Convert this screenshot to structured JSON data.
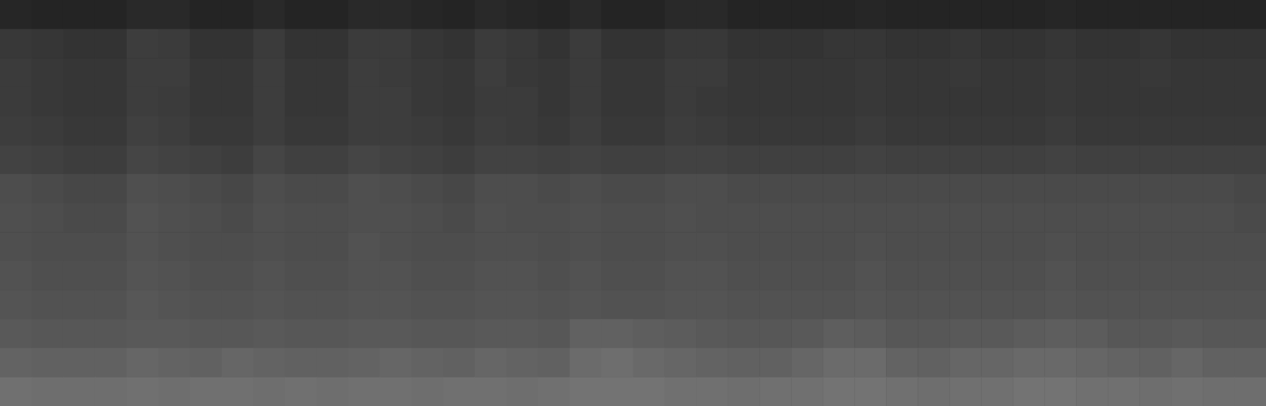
{
  "chart_data": {
    "type": "heatmap",
    "tick_labels": false,
    "grid": false,
    "zlim": [
      0,
      100
    ],
    "values": [
      [
        15,
        14,
        14,
        14,
        16,
        16,
        14,
        14,
        16,
        14,
        14,
        16,
        16,
        15,
        14,
        16,
        15,
        14,
        16,
        14,
        14,
        16,
        16,
        14,
        14,
        14,
        14,
        15,
        14,
        14,
        14,
        14,
        14,
        15,
        14,
        14,
        14,
        14,
        14,
        14
      ],
      [
        22,
        21,
        20,
        20,
        24,
        23,
        20,
        20,
        23,
        20,
        20,
        23,
        23,
        21,
        20,
        23,
        22,
        20,
        23,
        20,
        20,
        22,
        22,
        20,
        20,
        20,
        21,
        21,
        20,
        20,
        21,
        20,
        20,
        21,
        20,
        20,
        21,
        20,
        20,
        20
      ],
      [
        23,
        22,
        21,
        21,
        24,
        24,
        21,
        21,
        24,
        21,
        21,
        24,
        23,
        22,
        21,
        24,
        22,
        21,
        23,
        21,
        21,
        23,
        23,
        21,
        21,
        21,
        21,
        22,
        21,
        21,
        22,
        21,
        21,
        22,
        21,
        21,
        22,
        21,
        21,
        21
      ],
      [
        23,
        22,
        21,
        21,
        24,
        23,
        21,
        21,
        24,
        21,
        21,
        24,
        24,
        22,
        21,
        23,
        23,
        21,
        23,
        21,
        21,
        23,
        22,
        21,
        21,
        21,
        21,
        22,
        21,
        21,
        21,
        21,
        21,
        22,
        21,
        21,
        21,
        21,
        21,
        21
      ],
      [
        24,
        23,
        22,
        22,
        25,
        24,
        22,
        22,
        24,
        22,
        22,
        24,
        24,
        23,
        22,
        24,
        23,
        22,
        24,
        22,
        22,
        24,
        23,
        22,
        22,
        22,
        22,
        23,
        22,
        22,
        22,
        22,
        22,
        23,
        22,
        22,
        22,
        22,
        22,
        22
      ],
      [
        26,
        25,
        24,
        24,
        27,
        26,
        25,
        24,
        27,
        25,
        25,
        27,
        26,
        25,
        24,
        26,
        26,
        25,
        26,
        25,
        25,
        26,
        26,
        25,
        25,
        25,
        25,
        26,
        25,
        25,
        25,
        25,
        25,
        26,
        25,
        25,
        25,
        25,
        25,
        25
      ],
      [
        30,
        29,
        28,
        28,
        31,
        30,
        29,
        28,
        30,
        29,
        29,
        31,
        30,
        29,
        28,
        30,
        30,
        29,
        30,
        29,
        29,
        30,
        30,
        29,
        29,
        29,
        29,
        29,
        29,
        29,
        29,
        29,
        29,
        29,
        29,
        29,
        29,
        29,
        29,
        28
      ],
      [
        31,
        30,
        29,
        29,
        32,
        31,
        30,
        29,
        31,
        30,
        30,
        31,
        31,
        30,
        29,
        31,
        30,
        30,
        31,
        30,
        30,
        31,
        30,
        30,
        30,
        30,
        30,
        30,
        30,
        30,
        30,
        30,
        30,
        30,
        30,
        30,
        30,
        30,
        30,
        29
      ],
      [
        31,
        30,
        30,
        30,
        32,
        31,
        30,
        30,
        31,
        30,
        30,
        32,
        31,
        30,
        30,
        31,
        31,
        30,
        31,
        30,
        30,
        31,
        31,
        30,
        30,
        30,
        30,
        31,
        30,
        30,
        30,
        30,
        30,
        31,
        30,
        30,
        30,
        30,
        30,
        30
      ],
      [
        32,
        31,
        31,
        31,
        33,
        32,
        31,
        31,
        32,
        31,
        31,
        32,
        32,
        31,
        31,
        32,
        32,
        31,
        32,
        31,
        31,
        32,
        32,
        31,
        31,
        31,
        31,
        32,
        31,
        31,
        31,
        31,
        31,
        32,
        31,
        31,
        31,
        31,
        31,
        31
      ],
      [
        33,
        32,
        32,
        32,
        34,
        33,
        32,
        32,
        33,
        32,
        32,
        33,
        33,
        32,
        32,
        33,
        33,
        32,
        33,
        32,
        32,
        33,
        33,
        32,
        32,
        32,
        32,
        33,
        32,
        32,
        32,
        32,
        32,
        33,
        32,
        32,
        32,
        32,
        32,
        32
      ],
      [
        35,
        34,
        34,
        34,
        35,
        35,
        34,
        34,
        35,
        34,
        34,
        35,
        35,
        34,
        34,
        35,
        35,
        34,
        38,
        38,
        37,
        36,
        35,
        34,
        34,
        35,
        37,
        36,
        34,
        34,
        35,
        35,
        36,
        37,
        36,
        34,
        34,
        35,
        34,
        34
      ],
      [
        39,
        38,
        38,
        38,
        40,
        39,
        38,
        40,
        39,
        38,
        38,
        39,
        40,
        39,
        38,
        40,
        39,
        38,
        42,
        43,
        41,
        40,
        39,
        38,
        38,
        40,
        42,
        42,
        39,
        38,
        40,
        40,
        41,
        41,
        40,
        39,
        38,
        40,
        38,
        38
      ],
      [
        44,
        43,
        43,
        43,
        44,
        43,
        44,
        44,
        43,
        44,
        43,
        44,
        44,
        43,
        44,
        44,
        43,
        44,
        45,
        45,
        45,
        44,
        44,
        43,
        44,
        44,
        45,
        45,
        44,
        43,
        44,
        44,
        45,
        45,
        44,
        44,
        43,
        44,
        43,
        43
      ]
    ]
  }
}
